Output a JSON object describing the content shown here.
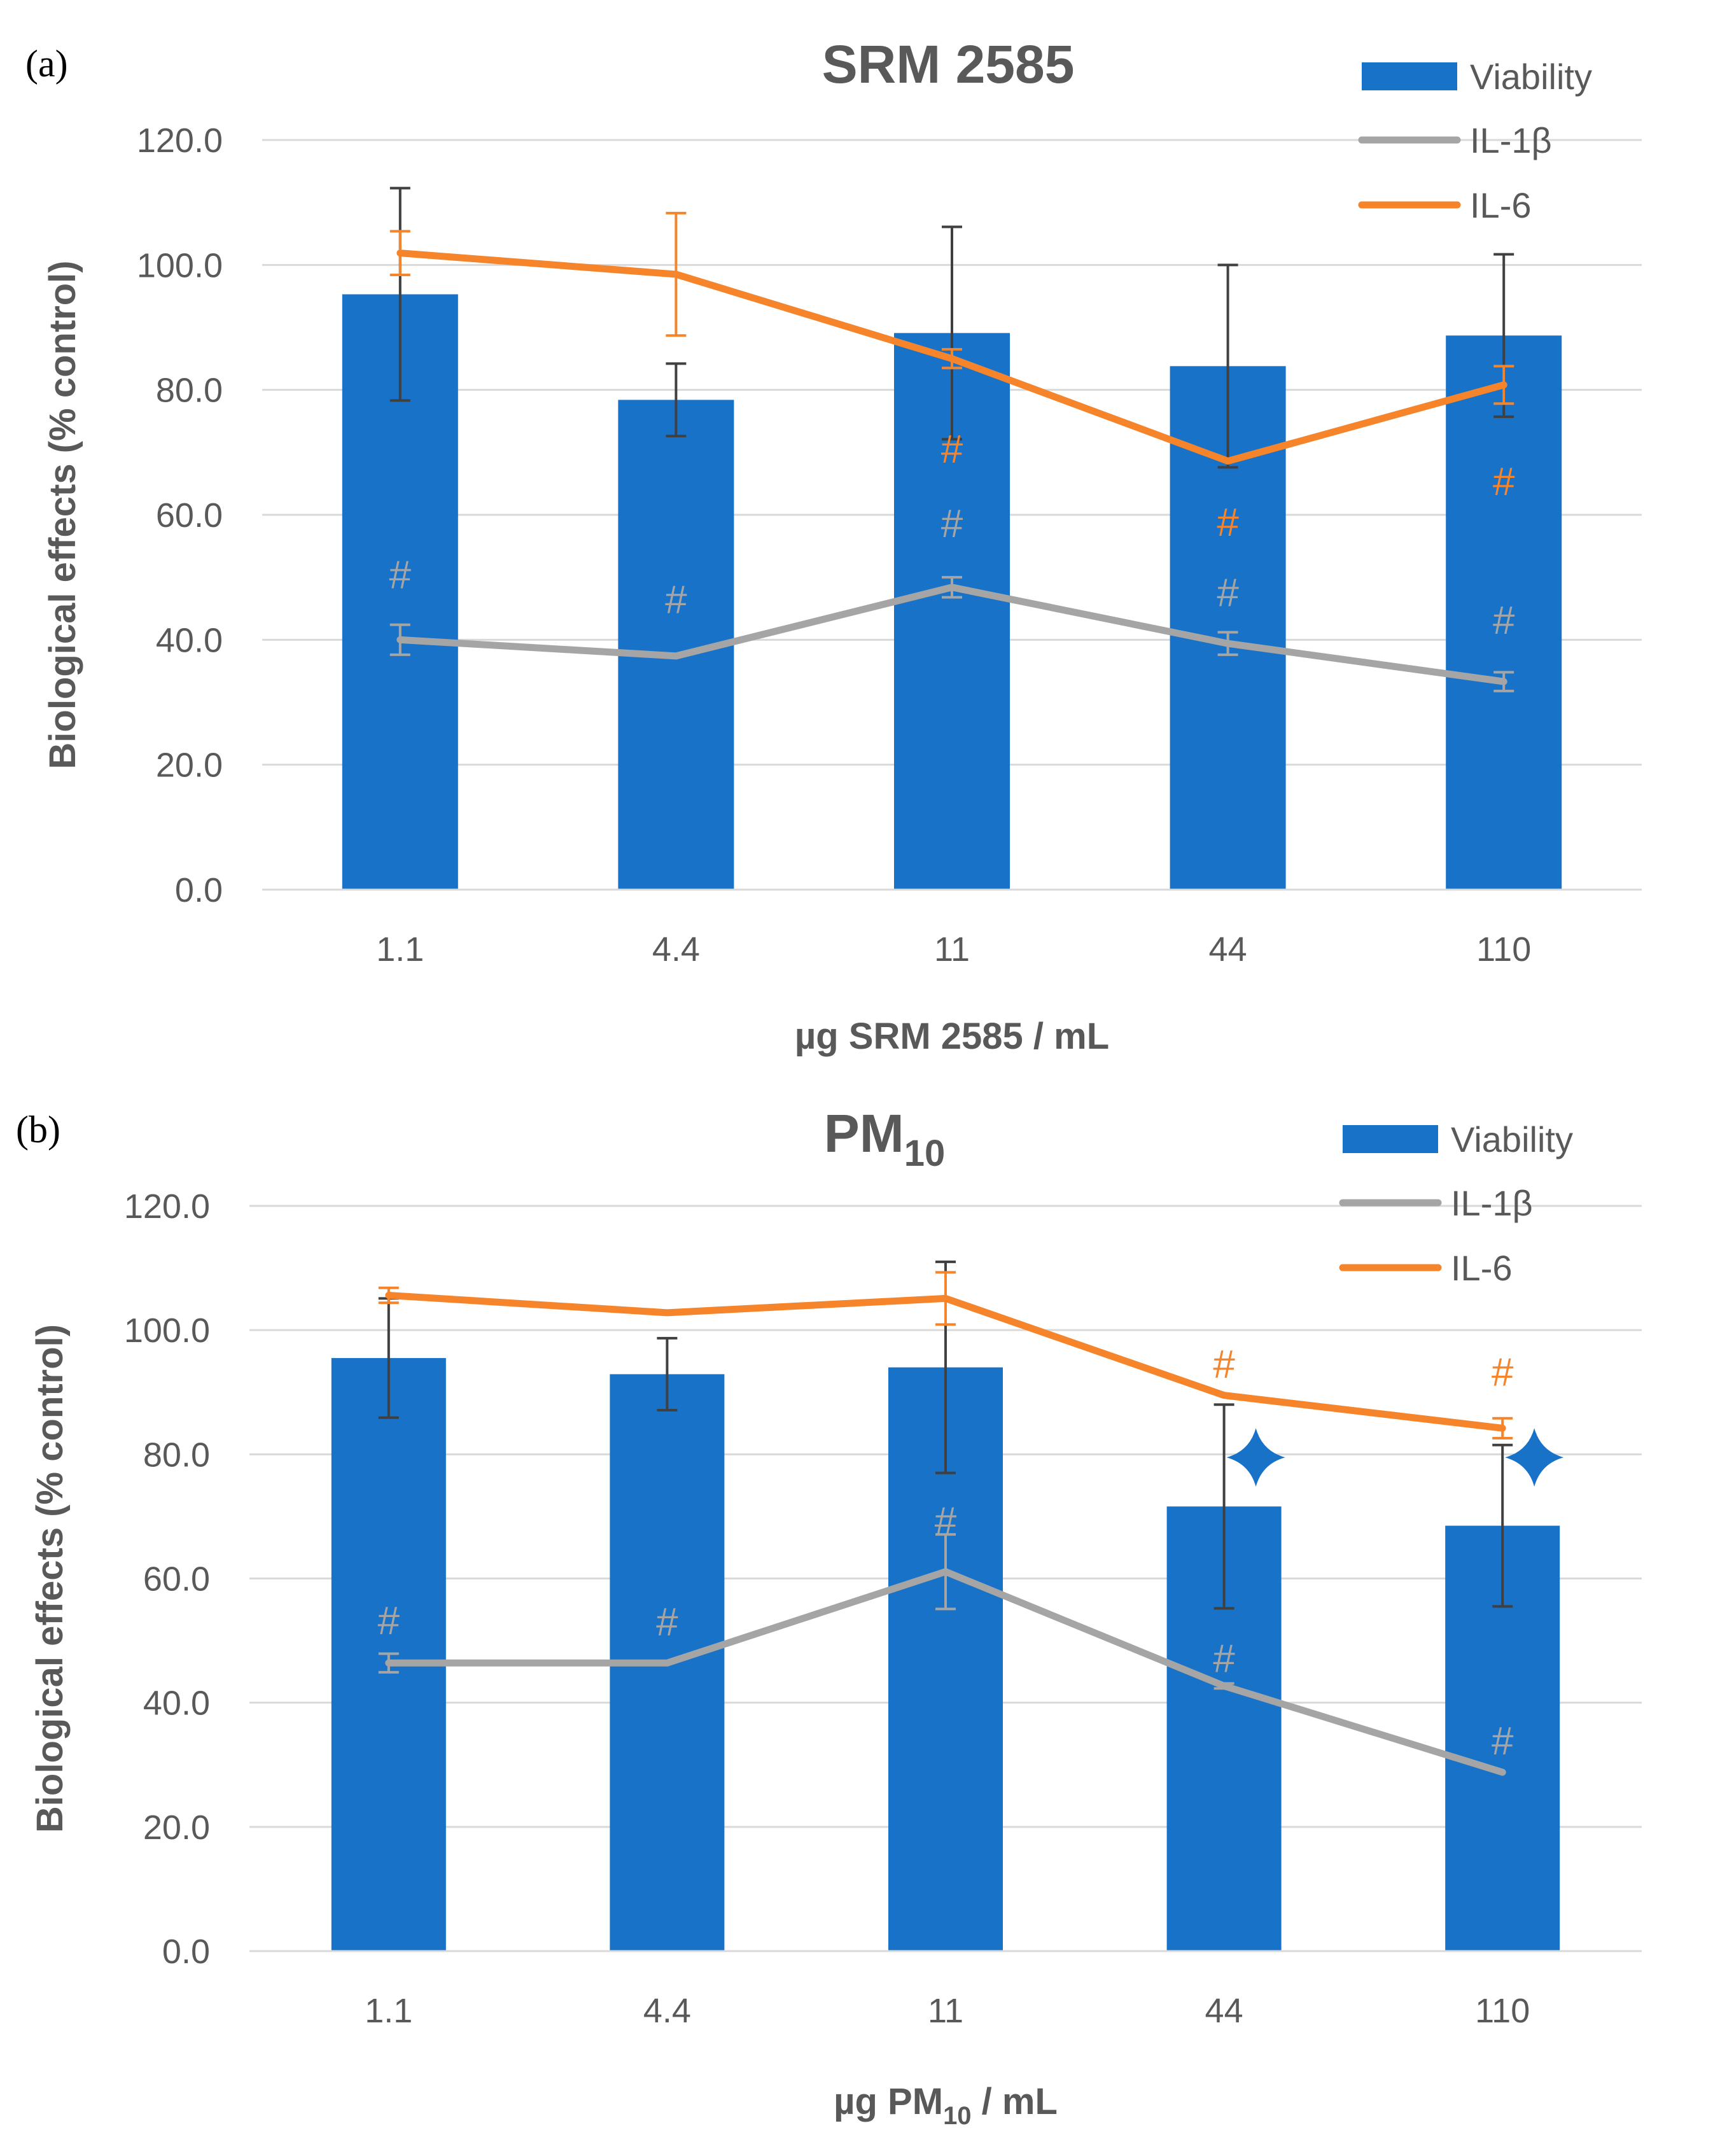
{
  "chart_data": [
    {
      "type": "bar",
      "panel_label": "(a)",
      "title": "SRM 2585",
      "title_sub": "",
      "xlabel": "µg SRM 2585 / mL",
      "xlabel_main": "µg SRM 2585 / mL",
      "xlabel_sub": "",
      "xlabel_tail": "",
      "ylabel": "Biological effects (% control)",
      "ylim": [
        0,
        120
      ],
      "yticks": [
        "0.0",
        "20.0",
        "40.0",
        "60.0",
        "80.0",
        "100.0",
        "120.0"
      ],
      "grid": true,
      "legend_position": "top-right",
      "categories": [
        "1.1",
        "4.4",
        "11",
        "44",
        "110"
      ],
      "series": [
        {
          "name": "Viability",
          "kind": "bar",
          "color": "#1872C7",
          "values": [
            95.3,
            78.4,
            89.1,
            83.8,
            88.7
          ],
          "errors": [
            17.0,
            5.8,
            17.0,
            16.2,
            13.0
          ]
        },
        {
          "name": "IL-1β",
          "kind": "line",
          "color": "#A5A5A5",
          "values": [
            40.0,
            37.4,
            48.4,
            39.4,
            33.3
          ],
          "errors": [
            2.4,
            0,
            1.6,
            1.8,
            1.5
          ]
        },
        {
          "name": "IL-6",
          "kind": "line",
          "color": "#F5842B",
          "values": [
            101.9,
            98.5,
            85.0,
            68.6,
            80.8
          ],
          "errors": [
            3.5,
            9.8,
            1.5,
            0,
            3.0
          ]
        }
      ],
      "annotations": [
        {
          "text": "#",
          "series": "IL-1β",
          "category": "1.1",
          "y": 50.5
        },
        {
          "text": "#",
          "series": "IL-1β",
          "category": "4.4",
          "y": 46.5
        },
        {
          "text": "#",
          "series": "IL-1β",
          "category": "11",
          "y": 58.7
        },
        {
          "text": "#",
          "series": "IL-6",
          "category": "11",
          "y": 70.6
        },
        {
          "text": "#",
          "series": "IL-1β",
          "category": "44",
          "y": 47.6
        },
        {
          "text": "#",
          "series": "IL-6",
          "category": "44",
          "y": 58.9
        },
        {
          "text": "#",
          "series": "IL-1β",
          "category": "110",
          "y": 43.2
        },
        {
          "text": "#",
          "series": "IL-6",
          "category": "110",
          "y": 65.4
        }
      ],
      "star_markers": []
    },
    {
      "type": "bar",
      "panel_label": "(b)",
      "title": "PM",
      "title_sub": "10",
      "xlabel": "µg PM10 / mL",
      "xlabel_main": "µg PM",
      "xlabel_sub": "10",
      "xlabel_tail": " / mL",
      "ylabel": "Biological effects (% control)",
      "ylim": [
        0,
        120
      ],
      "yticks": [
        "0.0",
        "20.0",
        "40.0",
        "60.0",
        "80.0",
        "100.0",
        "120.0"
      ],
      "grid": true,
      "legend_position": "top-right",
      "categories": [
        "1.1",
        "4.4",
        "11",
        "44",
        "110"
      ],
      "series": [
        {
          "name": "Viability",
          "kind": "bar",
          "color": "#1872C7",
          "values": [
            95.5,
            92.9,
            94.0,
            71.6,
            68.5
          ],
          "errors": [
            9.6,
            5.8,
            17.0,
            16.4,
            13.0
          ]
        },
        {
          "name": "IL-1β",
          "kind": "line",
          "color": "#A5A5A5",
          "values": [
            46.4,
            46.4,
            61.1,
            42.7,
            28.8
          ],
          "errors": [
            1.5,
            0,
            6.0,
            0.4,
            0
          ]
        },
        {
          "name": "IL-6",
          "kind": "line",
          "color": "#F5842B",
          "values": [
            105.6,
            102.8,
            105.1,
            89.5,
            84.2
          ],
          "errors": [
            1.2,
            0,
            4.2,
            0,
            1.6
          ]
        }
      ],
      "annotations": [
        {
          "text": "#",
          "series": "IL-1β",
          "category": "1.1",
          "y": 53.3
        },
        {
          "text": "#",
          "series": "IL-1β",
          "category": "4.4",
          "y": 53.1
        },
        {
          "text": "#",
          "series": "IL-1β",
          "category": "11",
          "y": 69.3
        },
        {
          "text": "#",
          "series": "IL-1β",
          "category": "44",
          "y": 47.2
        },
        {
          "text": "#",
          "series": "IL-6",
          "category": "44",
          "y": 94.6
        },
        {
          "text": "#",
          "series": "IL-1β",
          "category": "110",
          "y": 33.9
        },
        {
          "text": "#",
          "series": "IL-6",
          "category": "110",
          "y": 93.3
        }
      ],
      "star_markers": [
        {
          "category": "44",
          "y": 79.5
        },
        {
          "category": "110",
          "y": 79.5
        }
      ]
    }
  ]
}
